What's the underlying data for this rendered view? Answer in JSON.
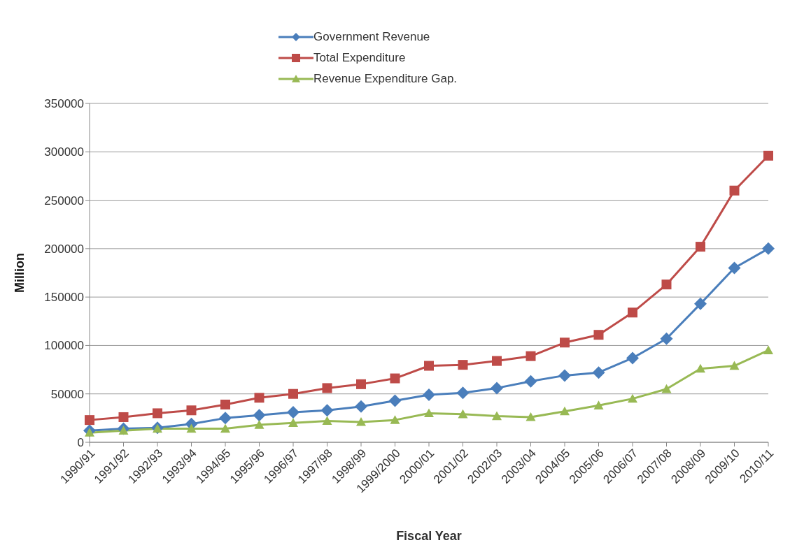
{
  "chart_data": {
    "type": "line",
    "xlabel": "Fiscal Year",
    "ylabel": "Million",
    "categories": [
      "1990/91",
      "1991/92",
      "1992/93",
      "1993/94",
      "1994/95",
      "1995/96",
      "1996/97",
      "1997/98",
      "1998/99",
      "1999/2000",
      "2000/01",
      "2001/02",
      "2002/03",
      "2003/04",
      "2004/05",
      "2005/06",
      "2006/07",
      "2007/08",
      "2008/09",
      "2009/10",
      "2010/11"
    ],
    "series": [
      {
        "name": "Government Revenue",
        "color": "#4a7ebb",
        "marker": "diamond",
        "values": [
          12000,
          14000,
          15000,
          19000,
          25000,
          28000,
          31000,
          33000,
          37000,
          43000,
          49000,
          51000,
          56000,
          63000,
          69000,
          72000,
          87000,
          107000,
          143000,
          180000,
          200000
        ]
      },
      {
        "name": "Total Expenditure",
        "color": "#be4b48",
        "marker": "square",
        "values": [
          23000,
          26000,
          30000,
          33000,
          39000,
          46000,
          50000,
          56000,
          60000,
          66000,
          79000,
          80000,
          84000,
          89000,
          103000,
          111000,
          134000,
          163000,
          202000,
          260000,
          296000
        ]
      },
      {
        "name": "Revenue Expenditure Gap.",
        "color": "#98b954",
        "marker": "triangle",
        "values": [
          10000,
          12000,
          14000,
          14000,
          14000,
          18000,
          20000,
          22000,
          21000,
          23000,
          30000,
          29000,
          27000,
          26000,
          32000,
          38000,
          45000,
          55000,
          76000,
          79000,
          95000
        ]
      }
    ],
    "ylim": [
      0,
      350000
    ],
    "yticks": [
      0,
      50000,
      100000,
      150000,
      200000,
      250000,
      300000,
      350000
    ],
    "grid": "y",
    "legend": "top",
    "line_style": "solid"
  }
}
